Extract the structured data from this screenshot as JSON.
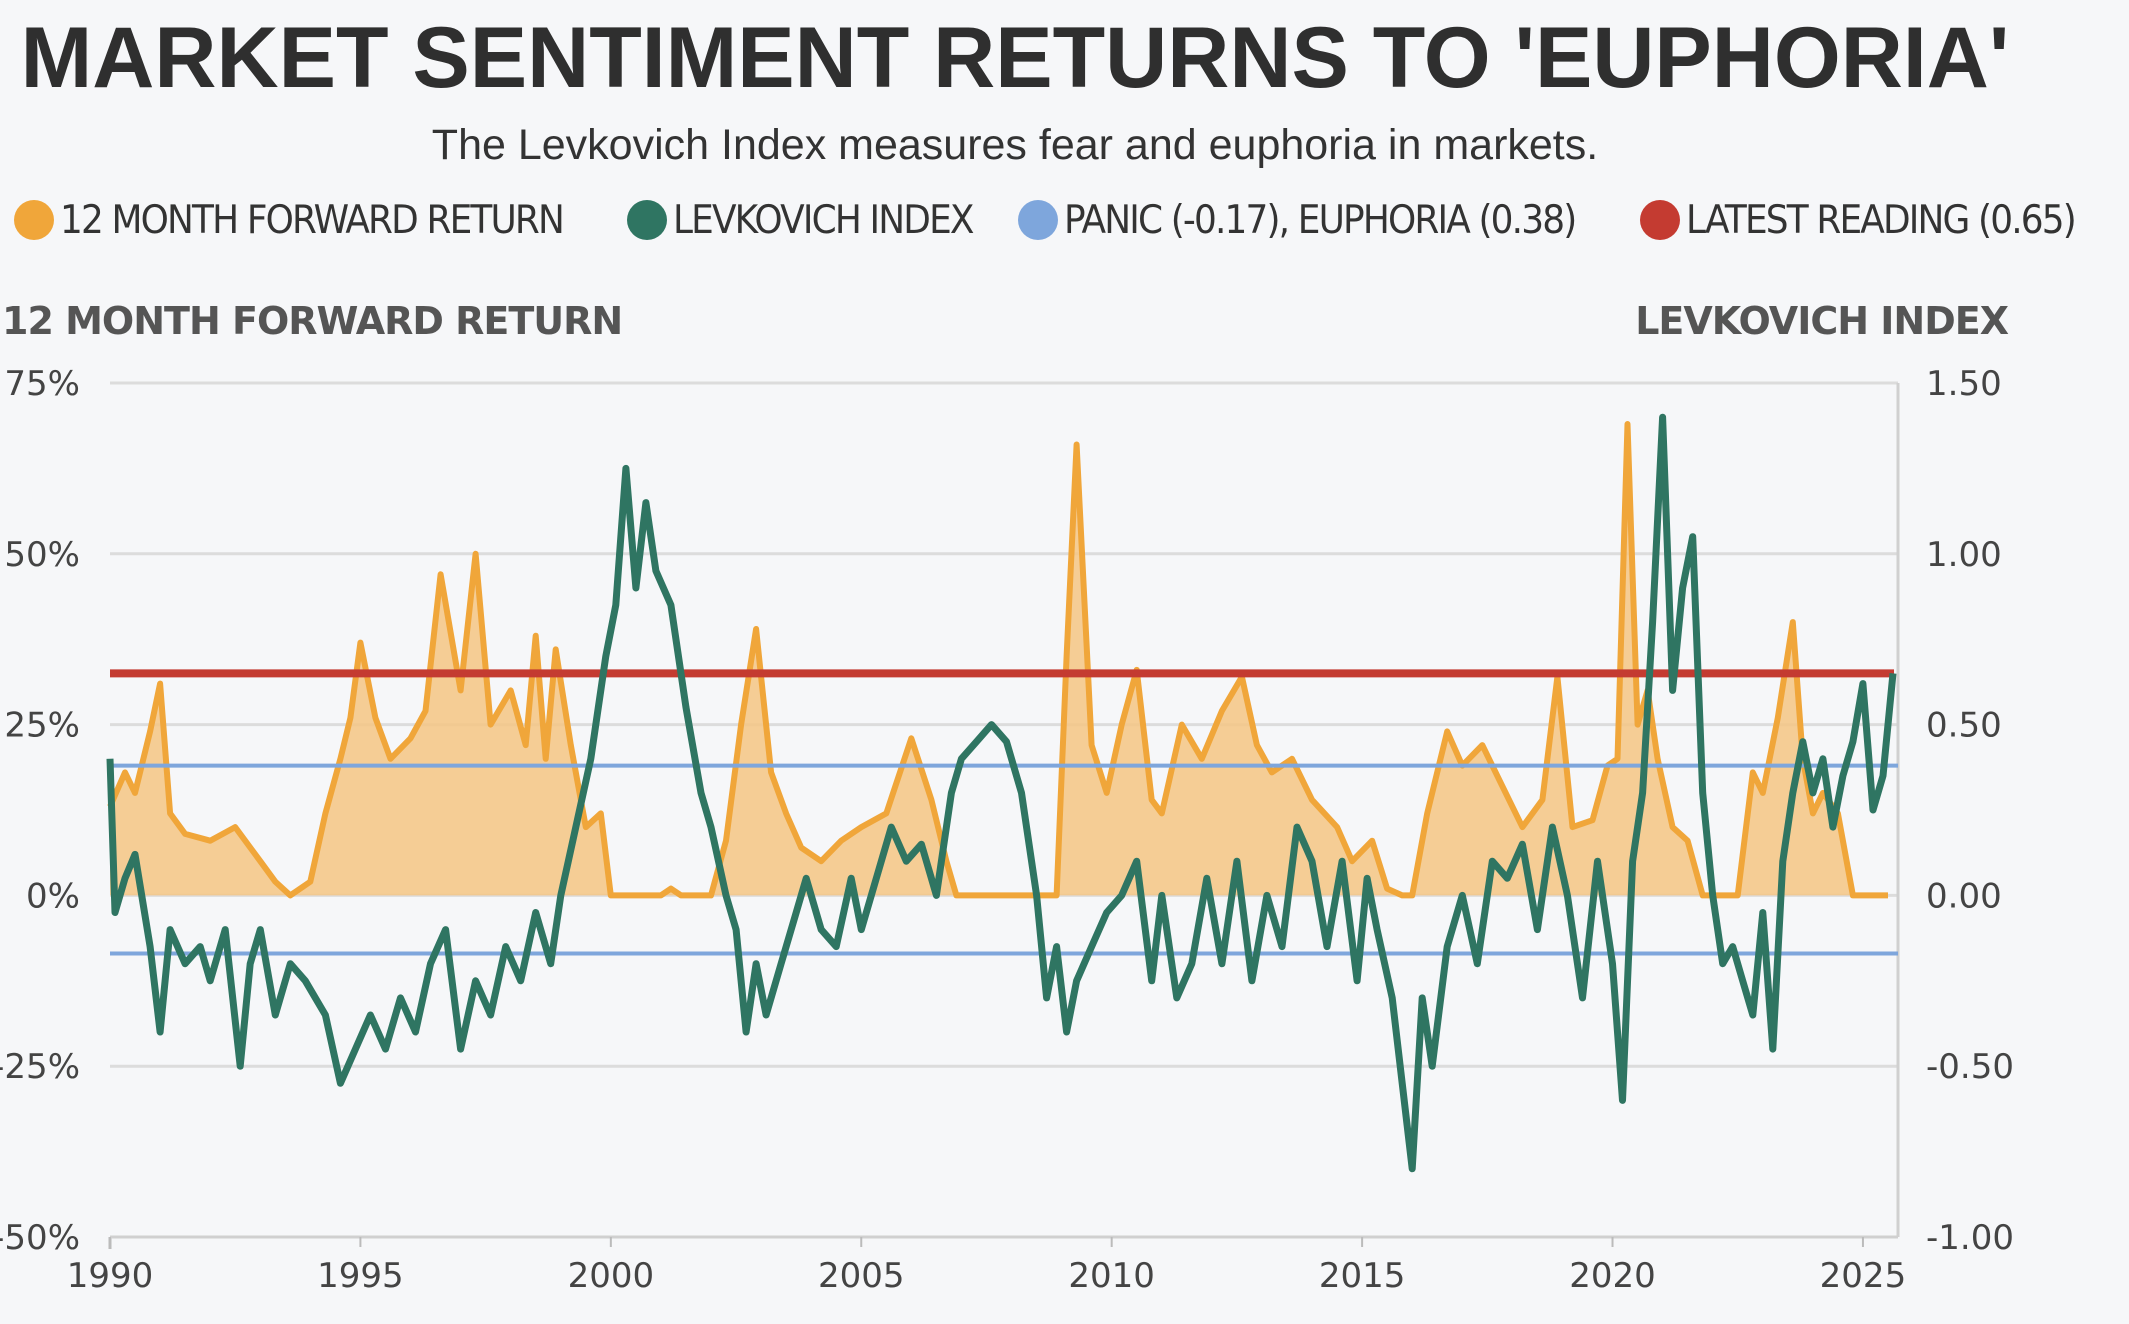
{
  "title": "MARKET SENTIMENT RETURNS TO 'EUPHORIA'",
  "subtitle": "The Levkovich Index measures fear and euphoria in markets.",
  "legend": [
    {
      "label": "12 MONTH FORWARD RETURN",
      "color": "#f0a63a"
    },
    {
      "label": "LEVKOVICH INDEX",
      "color": "#2f7562"
    },
    {
      "label": "PANIC (-0.17), EUPHORIA (0.38)",
      "color": "#7ea6dc"
    },
    {
      "label": "LATEST READING (0.65)",
      "color": "#c43b31"
    }
  ],
  "colors": {
    "forward_return": "#f0a63a",
    "forward_return_fill": "#f4c684",
    "levkovich": "#2f7562",
    "thresholds": "#7ea6dc",
    "latest": "#c43b31",
    "grid": "#dcdcdc"
  },
  "axis_titles": {
    "left": "12 MONTH FORWARD RETURN",
    "right": "LEVKOVICH INDEX"
  },
  "chart_data": {
    "type": "line",
    "title": "MARKET SENTIMENT RETURNS TO 'EUPHORIA'",
    "xlabel": "",
    "ylabel_left": "12 MONTH FORWARD RETURN",
    "ylabel_right": "LEVKOVICH INDEX",
    "xlim": [
      1990,
      2025.7
    ],
    "ylim_left": [
      -50,
      75
    ],
    "ylim_right": [
      -1.0,
      1.5
    ],
    "x_ticks": [
      "1990",
      "1995",
      "2000",
      "2005",
      "2010",
      "2015",
      "2020",
      "2025"
    ],
    "x_tick_values": [
      1990,
      1995,
      2000,
      2005,
      2010,
      2015,
      2020,
      2025
    ],
    "y_left_ticks": [
      "75%",
      "50%",
      "25%",
      "0%",
      "-25%",
      "-50%"
    ],
    "y_left_tick_values": [
      75,
      50,
      25,
      0,
      -25,
      -50
    ],
    "y_right_ticks": [
      "1.50",
      "1.00",
      "0.50",
      "0.00",
      "-0.50",
      "-1.00"
    ],
    "y_right_tick_values": [
      1.5,
      1.0,
      0.5,
      0.0,
      -0.5,
      -1.0
    ],
    "reference_lines": [
      {
        "name": "Panic",
        "value": -0.17,
        "axis": "right"
      },
      {
        "name": "Euphoria",
        "value": 0.38,
        "axis": "right"
      },
      {
        "name": "Latest reading",
        "value": 0.65,
        "axis": "right"
      }
    ],
    "series": [
      {
        "name": "12 MONTH FORWARD RETURN",
        "axis": "left",
        "x": [
          1990.0,
          1990.3,
          1990.5,
          1990.8,
          1991.0,
          1991.2,
          1991.5,
          1992.0,
          1992.5,
          1993.0,
          1993.3,
          1993.6,
          1994.0,
          1994.3,
          1994.6,
          1994.8,
          1995.0,
          1995.3,
          1995.6,
          1996.0,
          1996.3,
          1996.6,
          1997.0,
          1997.3,
          1997.6,
          1998.0,
          1998.3,
          1998.5,
          1998.7,
          1998.9,
          1999.2,
          1999.5,
          1999.8,
          2000.0,
          2001.0,
          2001.2,
          2001.4,
          2002.0,
          2002.3,
          2002.6,
          2002.9,
          2003.2,
          2003.5,
          2003.8,
          2004.2,
          2004.6,
          2005.0,
          2005.5,
          2006.0,
          2006.4,
          2006.7,
          2006.9,
          2007.2,
          2007.5,
          2008.0,
          2008.5,
          2008.9,
          2009.1,
          2009.3,
          2009.6,
          2009.9,
          2010.2,
          2010.5,
          2010.8,
          2011.0,
          2011.4,
          2011.8,
          2012.2,
          2012.6,
          2012.9,
          2013.2,
          2013.6,
          2014.0,
          2014.5,
          2014.8,
          2015.2,
          2015.5,
          2015.8,
          2016.0,
          2016.3,
          2016.7,
          2017.0,
          2017.4,
          2017.8,
          2018.2,
          2018.6,
          2018.9,
          2019.2,
          2019.6,
          2019.9,
          2020.1,
          2020.3,
          2020.5,
          2020.7,
          2020.9,
          2021.2,
          2021.5,
          2021.8,
          2022.0,
          2022.5,
          2022.8,
          2023.0,
          2023.3,
          2023.6,
          2023.8,
          2024.0,
          2024.2,
          2024.5,
          2024.8,
          2025.0,
          2025.5
        ],
        "values": [
          13,
          18,
          15,
          24,
          31,
          12,
          9,
          8,
          10,
          5,
          2,
          0,
          2,
          12,
          20,
          26,
          37,
          26,
          20,
          23,
          27,
          47,
          30,
          50,
          25,
          30,
          22,
          38,
          20,
          36,
          22,
          10,
          12,
          0,
          0,
          1,
          0,
          0,
          8,
          25,
          39,
          18,
          12,
          7,
          5,
          8,
          10,
          12,
          23,
          14,
          5,
          0,
          0,
          0,
          0,
          0,
          0,
          35,
          66,
          22,
          15,
          25,
          33,
          14,
          12,
          25,
          20,
          27,
          32,
          22,
          18,
          20,
          14,
          10,
          5,
          8,
          1,
          0,
          0,
          12,
          24,
          19,
          22,
          16,
          10,
          14,
          32,
          10,
          11,
          19,
          20,
          69,
          25,
          30,
          20,
          10,
          8,
          0,
          0,
          0,
          18,
          15,
          26,
          40,
          20,
          12,
          15,
          12,
          0,
          0,
          0
        ]
      },
      {
        "name": "LEVKOVICH INDEX",
        "axis": "right",
        "x": [
          1990.0,
          1990.1,
          1990.3,
          1990.5,
          1990.8,
          1991.0,
          1991.2,
          1991.5,
          1991.8,
          1992.0,
          1992.3,
          1992.6,
          1992.8,
          1993.0,
          1993.3,
          1993.6,
          1993.9,
          1994.3,
          1994.6,
          1994.9,
          1995.2,
          1995.5,
          1995.8,
          1996.1,
          1996.4,
          1996.7,
          1997.0,
          1997.3,
          1997.6,
          1997.9,
          1998.2,
          1998.5,
          1998.8,
          1999.0,
          1999.3,
          1999.6,
          1999.9,
          2000.1,
          2000.3,
          2000.5,
          2000.7,
          2000.9,
          2001.2,
          2001.5,
          2001.8,
          2002.0,
          2002.3,
          2002.5,
          2002.7,
          2002.9,
          2003.1,
          2003.4,
          2003.7,
          2003.9,
          2004.2,
          2004.5,
          2004.8,
          2005.0,
          2005.3,
          2005.6,
          2005.9,
          2006.2,
          2006.5,
          2006.8,
          2007.0,
          2007.3,
          2007.6,
          2007.9,
          2008.2,
          2008.5,
          2008.7,
          2008.9,
          2009.1,
          2009.3,
          2009.6,
          2009.9,
          2010.2,
          2010.5,
          2010.8,
          2011.0,
          2011.3,
          2011.6,
          2011.9,
          2012.2,
          2012.5,
          2012.8,
          2013.1,
          2013.4,
          2013.7,
          2014.0,
          2014.3,
          2014.6,
          2014.9,
          2015.1,
          2015.3,
          2015.6,
          2015.8,
          2016.0,
          2016.2,
          2016.4,
          2016.7,
          2017.0,
          2017.3,
          2017.6,
          2017.9,
          2018.2,
          2018.5,
          2018.8,
          2019.1,
          2019.4,
          2019.7,
          2020.0,
          2020.2,
          2020.4,
          2020.6,
          2020.8,
          2021.0,
          2021.2,
          2021.4,
          2021.6,
          2021.8,
          2022.0,
          2022.2,
          2022.4,
          2022.6,
          2022.8,
          2023.0,
          2023.2,
          2023.4,
          2023.6,
          2023.8,
          2024.0,
          2024.2,
          2024.4,
          2024.6,
          2024.8,
          2025.0,
          2025.2,
          2025.4,
          2025.6
        ],
        "values": [
          0.4,
          -0.05,
          0.05,
          0.12,
          -0.15,
          -0.4,
          -0.1,
          -0.2,
          -0.15,
          -0.25,
          -0.1,
          -0.5,
          -0.2,
          -0.1,
          -0.35,
          -0.2,
          -0.25,
          -0.35,
          -0.55,
          -0.45,
          -0.35,
          -0.45,
          -0.3,
          -0.4,
          -0.2,
          -0.1,
          -0.45,
          -0.25,
          -0.35,
          -0.15,
          -0.25,
          -0.05,
          -0.2,
          0.0,
          0.2,
          0.4,
          0.7,
          0.85,
          1.25,
          0.9,
          1.15,
          0.95,
          0.85,
          0.55,
          0.3,
          0.2,
          0.0,
          -0.1,
          -0.4,
          -0.2,
          -0.35,
          -0.2,
          -0.05,
          0.05,
          -0.1,
          -0.15,
          0.05,
          -0.1,
          0.05,
          0.2,
          0.1,
          0.15,
          0.0,
          0.3,
          0.4,
          0.45,
          0.5,
          0.45,
          0.3,
          0.0,
          -0.3,
          -0.15,
          -0.4,
          -0.25,
          -0.15,
          -0.05,
          0.0,
          0.1,
          -0.25,
          0.0,
          -0.3,
          -0.2,
          0.05,
          -0.2,
          0.1,
          -0.25,
          0.0,
          -0.15,
          0.2,
          0.1,
          -0.15,
          0.1,
          -0.25,
          0.05,
          -0.1,
          -0.3,
          -0.55,
          -0.8,
          -0.3,
          -0.5,
          -0.15,
          0.0,
          -0.2,
          0.1,
          0.05,
          0.15,
          -0.1,
          0.2,
          0.0,
          -0.3,
          0.1,
          -0.2,
          -0.6,
          0.1,
          0.3,
          0.8,
          1.4,
          0.6,
          0.9,
          1.05,
          0.3,
          0.0,
          -0.2,
          -0.15,
          -0.25,
          -0.35,
          -0.05,
          -0.45,
          0.1,
          0.3,
          0.45,
          0.3,
          0.4,
          0.2,
          0.35,
          0.45,
          0.62,
          0.25,
          0.35,
          0.65
        ]
      }
    ]
  }
}
